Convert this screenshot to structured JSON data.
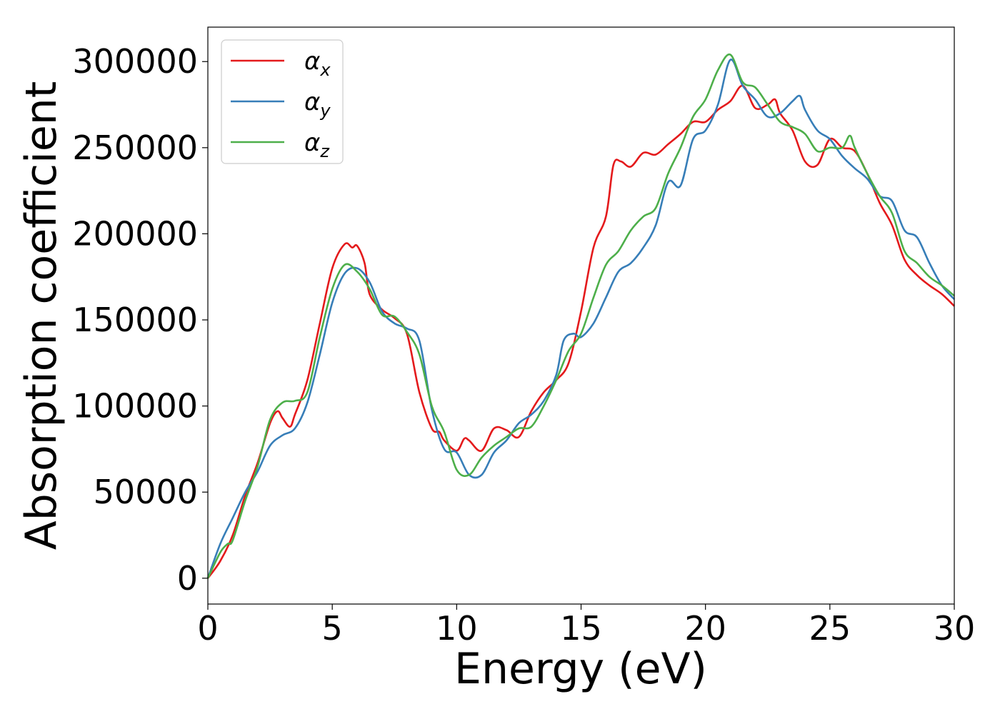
{
  "chart_data": {
    "type": "line",
    "xlabel": "Energy (eV)",
    "ylabel": "Absorption coefficient",
    "xlim": [
      0,
      30
    ],
    "ylim": [
      -15000,
      320000
    ],
    "xticks": [
      0,
      5,
      10,
      15,
      20,
      25,
      30
    ],
    "yticks": [
      0,
      50000,
      100000,
      150000,
      200000,
      250000,
      300000
    ],
    "grid": false,
    "legend_position": "top-left",
    "series": [
      {
        "name": "αx",
        "symbol": "α",
        "subscript": "x",
        "color": "#e41a1c",
        "x": [
          0,
          0.5,
          1.0,
          1.5,
          2.0,
          2.5,
          2.8,
          3.0,
          3.3,
          3.5,
          4.0,
          4.5,
          5.0,
          5.5,
          5.8,
          6.0,
          6.3,
          6.5,
          7.0,
          7.5,
          8.0,
          8.5,
          9.0,
          9.3,
          9.5,
          10.0,
          10.3,
          10.5,
          11.0,
          11.5,
          12.0,
          12.5,
          13.0,
          13.5,
          14.0,
          14.5,
          15.0,
          15.5,
          16.0,
          16.3,
          16.6,
          17.0,
          17.5,
          18.0,
          18.5,
          19.0,
          19.5,
          20.0,
          20.5,
          21.0,
          21.5,
          22.0,
          22.5,
          22.8,
          23.0,
          23.5,
          24.0,
          24.5,
          25.0,
          25.5,
          26.0,
          26.5,
          27.0,
          27.5,
          28.0,
          28.5,
          29.0,
          29.5,
          30.0
        ],
        "values": [
          0,
          10000,
          25000,
          48000,
          67000,
          90000,
          97000,
          93000,
          88000,
          95000,
          115000,
          148000,
          180000,
          194000,
          192000,
          193000,
          183000,
          165000,
          156000,
          151000,
          142000,
          108000,
          87000,
          85000,
          80000,
          74000,
          81000,
          80000,
          74000,
          87000,
          86000,
          82000,
          97000,
          108000,
          115000,
          125000,
          155000,
          192000,
          210000,
          240000,
          242000,
          239000,
          247000,
          246000,
          252000,
          258000,
          265000,
          265000,
          272000,
          277000,
          286000,
          273000,
          275000,
          278000,
          270000,
          260000,
          242000,
          240000,
          255000,
          250000,
          248000,
          235000,
          218000,
          205000,
          185000,
          176000,
          170000,
          165000,
          158000
        ]
      },
      {
        "name": "αy",
        "symbol": "α",
        "subscript": "y",
        "color": "#377eb8",
        "x": [
          0,
          0.5,
          1.0,
          1.5,
          2.0,
          2.5,
          3.0,
          3.5,
          4.0,
          4.5,
          5.0,
          5.5,
          6.0,
          6.5,
          7.0,
          7.5,
          8.0,
          8.5,
          9.0,
          9.5,
          10.0,
          10.5,
          11.0,
          11.5,
          12.0,
          12.5,
          13.0,
          13.5,
          14.0,
          14.3,
          14.7,
          15.0,
          15.5,
          16.0,
          16.5,
          17.0,
          17.5,
          18.0,
          18.5,
          19.0,
          19.5,
          20.0,
          20.5,
          21.0,
          21.5,
          22.0,
          22.5,
          23.0,
          23.5,
          23.8,
          24.0,
          24.5,
          25.0,
          25.5,
          26.0,
          26.5,
          27.0,
          27.5,
          28.0,
          28.5,
          29.0,
          29.5,
          30.0
        ],
        "values": [
          0,
          20000,
          35000,
          50000,
          62000,
          77000,
          83000,
          87000,
          102000,
          130000,
          160000,
          177000,
          180000,
          172000,
          155000,
          148000,
          145000,
          138000,
          98000,
          75000,
          73000,
          60000,
          60000,
          73000,
          80000,
          90000,
          95000,
          103000,
          118000,
          138000,
          142000,
          140000,
          148000,
          163000,
          178000,
          183000,
          192000,
          205000,
          230000,
          228000,
          255000,
          260000,
          275000,
          301000,
          286000,
          278000,
          268000,
          270000,
          277000,
          280000,
          272000,
          260000,
          255000,
          245000,
          238000,
          232000,
          222000,
          219000,
          202000,
          198000,
          183000,
          170000,
          162000
        ]
      },
      {
        "name": "αz",
        "symbol": "α",
        "subscript": "z",
        "color": "#4daf4a",
        "x": [
          0,
          0.5,
          0.8,
          1.0,
          1.5,
          2.0,
          2.5,
          3.0,
          3.5,
          4.0,
          4.5,
          5.0,
          5.5,
          6.0,
          6.5,
          7.0,
          7.5,
          8.0,
          8.5,
          9.0,
          9.5,
          10.0,
          10.5,
          11.0,
          11.5,
          12.0,
          12.5,
          13.0,
          13.5,
          14.0,
          14.5,
          15.0,
          15.5,
          16.0,
          16.5,
          17.0,
          17.5,
          18.0,
          18.5,
          19.0,
          19.5,
          20.0,
          20.5,
          21.0,
          21.5,
          22.0,
          22.5,
          23.0,
          23.5,
          24.0,
          24.5,
          25.0,
          25.5,
          25.8,
          26.0,
          26.5,
          27.0,
          27.5,
          28.0,
          28.5,
          29.0,
          29.5,
          30.0
        ],
        "values": [
          0,
          15000,
          20000,
          22000,
          45000,
          65000,
          92000,
          102000,
          103000,
          108000,
          140000,
          168000,
          182000,
          178000,
          168000,
          153000,
          152000,
          143000,
          130000,
          100000,
          85000,
          63000,
          60000,
          70000,
          77000,
          82000,
          87000,
          88000,
          100000,
          115000,
          132000,
          142000,
          163000,
          182000,
          190000,
          202000,
          210000,
          215000,
          235000,
          250000,
          268000,
          278000,
          295000,
          304000,
          288000,
          285000,
          275000,
          265000,
          262000,
          258000,
          248000,
          250000,
          250000,
          257000,
          250000,
          235000,
          222000,
          212000,
          190000,
          183000,
          175000,
          170000,
          164000
        ]
      }
    ]
  }
}
